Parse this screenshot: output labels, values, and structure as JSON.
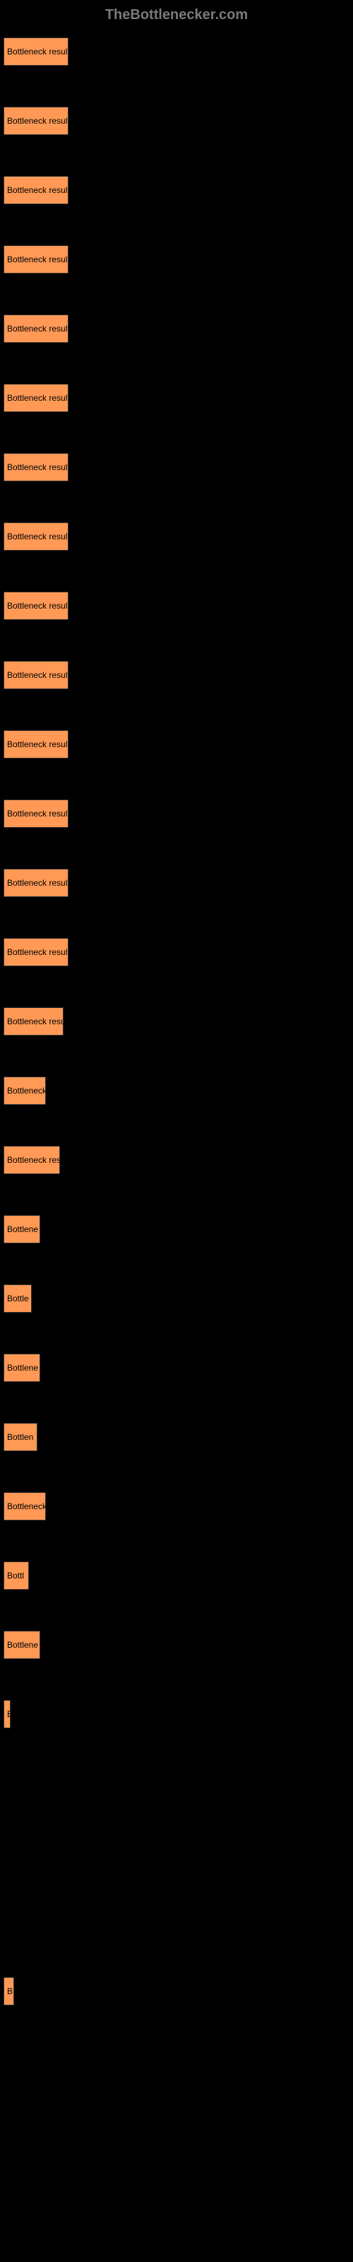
{
  "header": {
    "title": "TheBottlenecker.com"
  },
  "chart": {
    "type": "bar",
    "bar_color": "#ff9955",
    "background_color": "#000000",
    "text_color": "#000000",
    "header_color": "#7a7a7a",
    "bars": [
      {
        "label": "Bottleneck result",
        "width": 92
      },
      {
        "label": "Bottleneck result",
        "width": 92
      },
      {
        "label": "Bottleneck result",
        "width": 92
      },
      {
        "label": "Bottleneck result",
        "width": 92
      },
      {
        "label": "Bottleneck result",
        "width": 92
      },
      {
        "label": "Bottleneck result",
        "width": 92
      },
      {
        "label": "Bottleneck result",
        "width": 92
      },
      {
        "label": "Bottleneck result",
        "width": 92
      },
      {
        "label": "Bottleneck result",
        "width": 92
      },
      {
        "label": "Bottleneck result",
        "width": 92
      },
      {
        "label": "Bottleneck result",
        "width": 92
      },
      {
        "label": "Bottleneck result",
        "width": 92
      },
      {
        "label": "Bottleneck result",
        "width": 92
      },
      {
        "label": "Bottleneck result",
        "width": 92
      },
      {
        "label": "Bottleneck resu",
        "width": 85
      },
      {
        "label": "Bottleneck",
        "width": 60
      },
      {
        "label": "Bottleneck res",
        "width": 80
      },
      {
        "label": "Bottlene",
        "width": 52
      },
      {
        "label": "Bottle",
        "width": 40
      },
      {
        "label": "Bottlene",
        "width": 52
      },
      {
        "label": "Bottlen",
        "width": 48
      },
      {
        "label": "Bottleneck",
        "width": 60
      },
      {
        "label": "Bottl",
        "width": 36
      },
      {
        "label": "Bottlene",
        "width": 52
      },
      {
        "label": "B",
        "width": 10
      },
      {
        "label": "",
        "width": 0
      },
      {
        "label": "",
        "width": 0
      },
      {
        "label": "",
        "width": 0
      },
      {
        "label": "B",
        "width": 15
      },
      {
        "label": "",
        "width": 0
      }
    ]
  }
}
